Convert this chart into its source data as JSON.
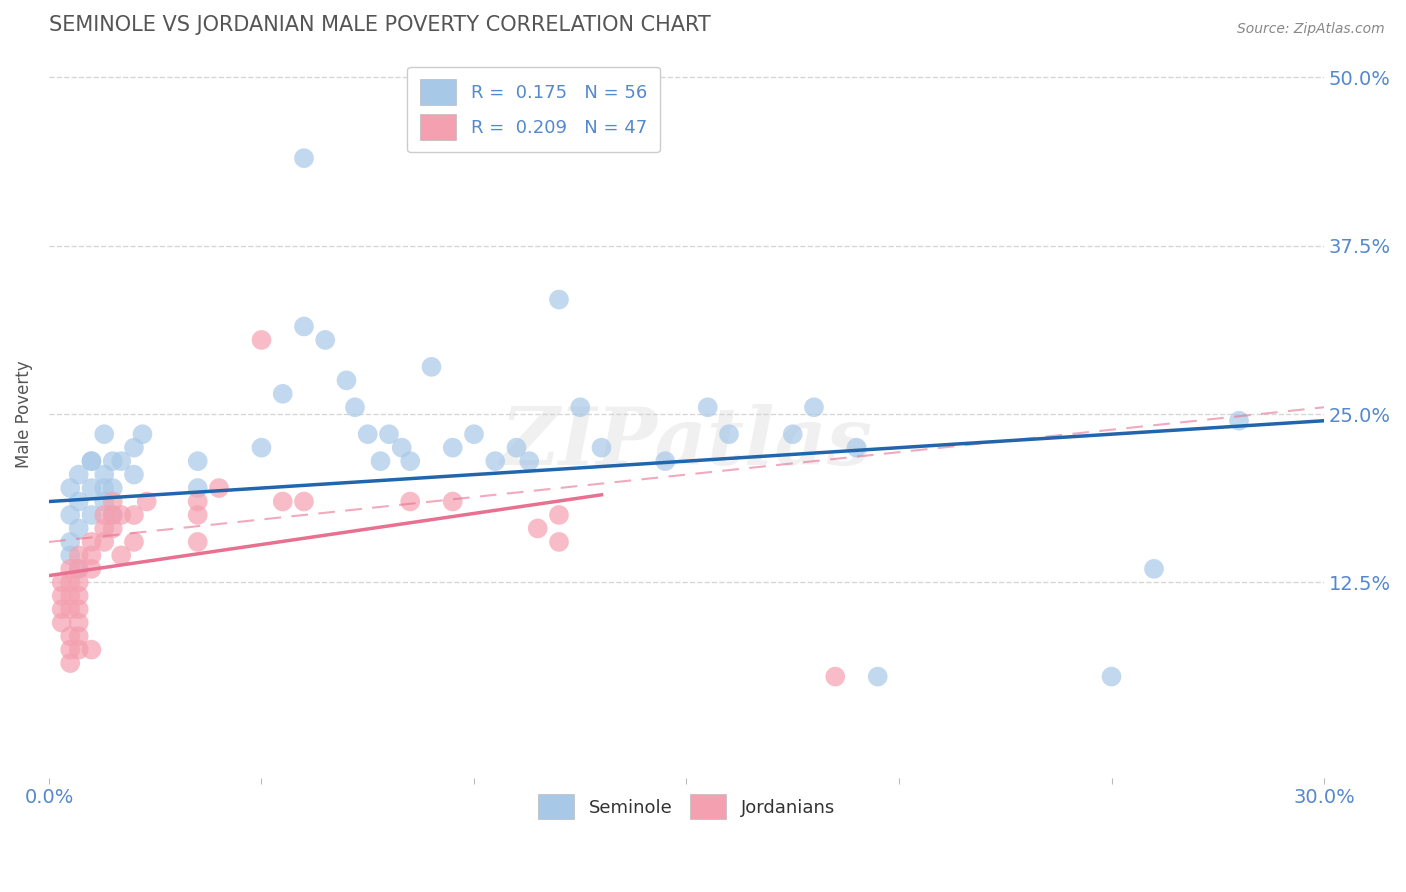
{
  "title": "SEMINOLE VS JORDANIAN MALE POVERTY CORRELATION CHART",
  "source_text": "Source: ZipAtlas.com",
  "ylabel": "Male Poverty",
  "xlim": [
    0.0,
    0.3
  ],
  "ylim": [
    -0.02,
    0.52
  ],
  "ytick_labels_right": [
    "50.0%",
    "37.5%",
    "25.0%",
    "12.5%"
  ],
  "ytick_vals_right": [
    0.5,
    0.375,
    0.25,
    0.125
  ],
  "seminole_color": "#a8c8e8",
  "jordanian_color": "#f4a0b0",
  "seminole_line_color": "#2166ac",
  "jordanian_line_color": "#e87090",
  "background_color": "#ffffff",
  "grid_color": "#cccccc",
  "watermark_text": "ZIPatlas",
  "title_color": "#555555",
  "axis_label_color": "#555555",
  "tick_color": "#5588cc",
  "seminole_points": [
    [
      0.005,
      0.195
    ],
    [
      0.005,
      0.175
    ],
    [
      0.005,
      0.155
    ],
    [
      0.005,
      0.145
    ],
    [
      0.007,
      0.185
    ],
    [
      0.007,
      0.165
    ],
    [
      0.007,
      0.205
    ],
    [
      0.007,
      0.135
    ],
    [
      0.01,
      0.195
    ],
    [
      0.01,
      0.175
    ],
    [
      0.01,
      0.215
    ],
    [
      0.01,
      0.215
    ],
    [
      0.013,
      0.205
    ],
    [
      0.013,
      0.195
    ],
    [
      0.013,
      0.235
    ],
    [
      0.013,
      0.185
    ],
    [
      0.015,
      0.215
    ],
    [
      0.015,
      0.195
    ],
    [
      0.015,
      0.175
    ],
    [
      0.017,
      0.215
    ],
    [
      0.02,
      0.225
    ],
    [
      0.02,
      0.205
    ],
    [
      0.022,
      0.235
    ],
    [
      0.035,
      0.215
    ],
    [
      0.035,
      0.195
    ],
    [
      0.05,
      0.225
    ],
    [
      0.055,
      0.265
    ],
    [
      0.06,
      0.315
    ],
    [
      0.065,
      0.305
    ],
    [
      0.07,
      0.275
    ],
    [
      0.072,
      0.255
    ],
    [
      0.075,
      0.235
    ],
    [
      0.078,
      0.215
    ],
    [
      0.08,
      0.235
    ],
    [
      0.083,
      0.225
    ],
    [
      0.085,
      0.215
    ],
    [
      0.09,
      0.285
    ],
    [
      0.095,
      0.225
    ],
    [
      0.1,
      0.235
    ],
    [
      0.105,
      0.215
    ],
    [
      0.11,
      0.225
    ],
    [
      0.113,
      0.215
    ],
    [
      0.12,
      0.335
    ],
    [
      0.125,
      0.255
    ],
    [
      0.13,
      0.225
    ],
    [
      0.145,
      0.215
    ],
    [
      0.155,
      0.255
    ],
    [
      0.16,
      0.235
    ],
    [
      0.06,
      0.44
    ],
    [
      0.175,
      0.235
    ],
    [
      0.18,
      0.255
    ],
    [
      0.19,
      0.225
    ],
    [
      0.195,
      0.055
    ],
    [
      0.25,
      0.055
    ],
    [
      0.26,
      0.135
    ],
    [
      0.28,
      0.245
    ]
  ],
  "jordanian_points": [
    [
      0.003,
      0.125
    ],
    [
      0.003,
      0.115
    ],
    [
      0.003,
      0.105
    ],
    [
      0.003,
      0.095
    ],
    [
      0.005,
      0.135
    ],
    [
      0.005,
      0.125
    ],
    [
      0.005,
      0.115
    ],
    [
      0.005,
      0.105
    ],
    [
      0.005,
      0.085
    ],
    [
      0.005,
      0.075
    ],
    [
      0.005,
      0.065
    ],
    [
      0.007,
      0.145
    ],
    [
      0.007,
      0.135
    ],
    [
      0.007,
      0.125
    ],
    [
      0.007,
      0.115
    ],
    [
      0.007,
      0.105
    ],
    [
      0.007,
      0.095
    ],
    [
      0.007,
      0.085
    ],
    [
      0.007,
      0.075
    ],
    [
      0.01,
      0.155
    ],
    [
      0.01,
      0.145
    ],
    [
      0.01,
      0.135
    ],
    [
      0.01,
      0.075
    ],
    [
      0.013,
      0.175
    ],
    [
      0.013,
      0.165
    ],
    [
      0.013,
      0.155
    ],
    [
      0.015,
      0.185
    ],
    [
      0.015,
      0.175
    ],
    [
      0.015,
      0.165
    ],
    [
      0.017,
      0.175
    ],
    [
      0.017,
      0.145
    ],
    [
      0.02,
      0.175
    ],
    [
      0.02,
      0.155
    ],
    [
      0.023,
      0.185
    ],
    [
      0.035,
      0.185
    ],
    [
      0.035,
      0.175
    ],
    [
      0.035,
      0.155
    ],
    [
      0.04,
      0.195
    ],
    [
      0.05,
      0.305
    ],
    [
      0.055,
      0.185
    ],
    [
      0.06,
      0.185
    ],
    [
      0.085,
      0.185
    ],
    [
      0.095,
      0.185
    ],
    [
      0.115,
      0.165
    ],
    [
      0.12,
      0.175
    ],
    [
      0.12,
      0.155
    ],
    [
      0.185,
      0.055
    ]
  ]
}
